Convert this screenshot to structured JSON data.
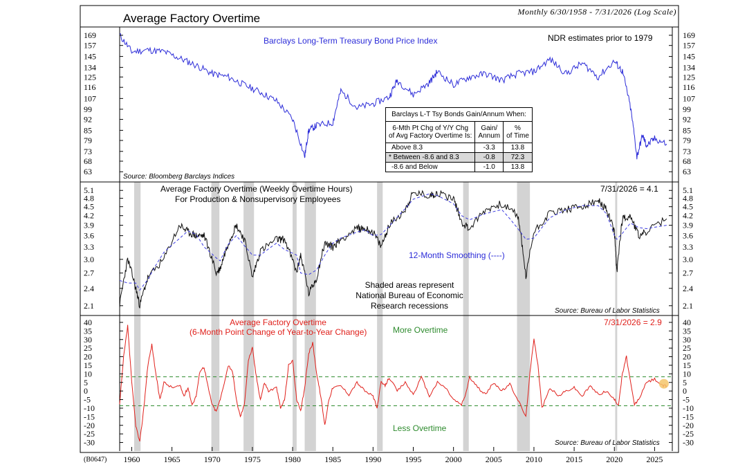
{
  "header": {
    "title": "Average Factory Overtime",
    "subtitle": "Monthly 6/30/1958 - 7/31/2026 (Log Scale)",
    "code": "(B0647)"
  },
  "colors": {
    "bonds": "#2b2bd8",
    "overtime": "#111111",
    "smoothing": "#3a3ae0",
    "change": "#e0201b",
    "threshold": "#2e8b2e",
    "recession": "#d3d3d3",
    "highlight": "#f4c66b"
  },
  "panels": {
    "top": {
      "series_label": "Barclays Long-Term Treasury Bond Price Index",
      "note": "NDR estimates prior to 1979",
      "source": "Source: Bloomberg Barclays Indices"
    },
    "middle": {
      "title_line1": "Average Factory Overtime (Weekly Overtime Hours)",
      "title_line2": "For Production & Nonsupervisory Employees",
      "latest": "7/31/2026 = 4.1",
      "smoothing_label": "12-Month Smoothing (----)",
      "shade_note_1": "Shaded areas represent",
      "shade_note_2": "National Bureau of Economic",
      "shade_note_3": "Research recessions",
      "source": "Source: Bureau of Labor Statistics"
    },
    "bottom": {
      "title_line1": "Average Factory Overtime",
      "title_line2": "(6-Month Point Change of Year-to-Year Change)",
      "latest": "7/31/2026 = 2.9",
      "more": "More Overtime",
      "less": "Less Overtime",
      "source": "Source: Bureau of Labor Statistics"
    }
  },
  "table": {
    "title": "Barclays L-T Tsy Bonds Gain/Annum When:",
    "col1_line1": "6-Mth Pt Chg of Y/Y Chg",
    "col1_line2": "of Avg Factory Overtime Is:",
    "col2_line1": "Gain/",
    "col2_line2": "Annum",
    "col3_line1": "%",
    "col3_line2": "of Time",
    "rows": [
      {
        "label": "Above 8.3",
        "gain": "-3.3",
        "pct": "13.8"
      },
      {
        "label": "*  Between -8.6 and 8.3",
        "gain": "-0.8",
        "pct": "72.3"
      },
      {
        "label": "-8.6 and Below",
        "gain": "-1.0",
        "pct": "13.8"
      }
    ]
  },
  "chart_data": [
    {
      "type": "line",
      "title": "Barclays Long-Term Treasury Bond Price Index",
      "scale": "log",
      "ylim": [
        60,
        175
      ],
      "yticks": [
        "169",
        "157",
        "145",
        "134",
        "125",
        "116",
        "107",
        "99",
        "92",
        "85",
        "79",
        "73",
        "68",
        "63"
      ],
      "x": [
        1958.5,
        1960,
        1962,
        1964,
        1966,
        1968,
        1970,
        1972,
        1974,
        1976,
        1978,
        1980,
        1981.5,
        1982,
        1983,
        1985,
        1986,
        1988,
        1990,
        1992,
        1993,
        1995,
        1997,
        1998,
        2000,
        2002,
        2004,
        2006,
        2008,
        2010,
        2012,
        2014,
        2016,
        2018,
        2020,
        2021,
        2022,
        2022.8,
        2023.5,
        2024,
        2025,
        2026.5
      ],
      "values": [
        169,
        150,
        152,
        150,
        143,
        136,
        128,
        125,
        118,
        112,
        105,
        92,
        70,
        85,
        88,
        90,
        113,
        100,
        103,
        108,
        122,
        110,
        120,
        130,
        118,
        125,
        128,
        122,
        128,
        130,
        142,
        128,
        138,
        125,
        140,
        130,
        100,
        70,
        82,
        76,
        80,
        77
      ]
    },
    {
      "type": "line",
      "title": "Average Factory Overtime (Weekly Overtime Hours)",
      "scale": "log",
      "ylim": [
        2.0,
        5.3
      ],
      "yticks": [
        "5.1",
        "4.8",
        "4.5",
        "4.2",
        "3.9",
        "3.6",
        "3.3",
        "3.0",
        "2.7",
        "2.4",
        "2.1"
      ],
      "x": [
        1958.5,
        1959.5,
        1960.5,
        1961,
        1962,
        1964,
        1966,
        1967,
        1968,
        1969,
        1970.5,
        1971,
        1972,
        1973,
        1974,
        1975,
        1976,
        1978,
        1979,
        1980.5,
        1981,
        1982,
        1983,
        1984,
        1985,
        1986,
        1988,
        1989,
        1990,
        1991,
        1992,
        1994,
        1995,
        1997,
        1998,
        2000,
        2001,
        2002,
        2004,
        2006,
        2008,
        2009,
        2010,
        2012,
        2014,
        2016,
        2018,
        2019,
        2020,
        2020.3,
        2021,
        2022,
        2023,
        2024,
        2026.5
      ],
      "values": [
        2.1,
        3.0,
        2.4,
        2.1,
        2.6,
        3.0,
        3.9,
        3.7,
        3.6,
        3.6,
        2.7,
        2.8,
        3.4,
        3.9,
        3.5,
        2.6,
        3.2,
        3.5,
        3.5,
        2.7,
        3.1,
        2.3,
        2.6,
        3.4,
        3.3,
        3.5,
        3.8,
        3.8,
        3.7,
        3.3,
        3.9,
        4.4,
        5.0,
        4.9,
        5.0,
        4.8,
        4.0,
        3.8,
        4.4,
        4.6,
        4.2,
        2.6,
        3.7,
        4.3,
        4.4,
        4.5,
        4.7,
        4.4,
        3.7,
        2.7,
        4.1,
        4.2,
        3.6,
        3.7,
        4.1
      ]
    },
    {
      "type": "line",
      "title": "Average Factory Overtime (6-Month Point Change of Year-to-Year Change)",
      "ylim": [
        -33,
        42
      ],
      "yticks": [
        "40",
        "35",
        "30",
        "25",
        "20",
        "15",
        "10",
        "5",
        "0",
        "-5",
        "-10",
        "-15",
        "-20",
        "-25",
        "-30"
      ],
      "thresholds": [
        8.3,
        -8.6
      ],
      "x": [
        1958.5,
        1959,
        1959.5,
        1960,
        1960.5,
        1961,
        1961.5,
        1962,
        1962.5,
        1963,
        1963.5,
        1964,
        1965,
        1966,
        1966.5,
        1967,
        1967.5,
        1968,
        1968.5,
        1969,
        1969.5,
        1970,
        1970.5,
        1971,
        1972,
        1972.5,
        1973,
        1973.5,
        1974,
        1974.5,
        1975,
        1975.5,
        1976,
        1976.5,
        1977,
        1978,
        1978.5,
        1979,
        1979.5,
        1980,
        1980.5,
        1981,
        1981.5,
        1982,
        1982.5,
        1983,
        1983.5,
        1984,
        1984.5,
        1985,
        1986,
        1987,
        1988,
        1989,
        1990,
        1990.5,
        1991,
        1991.5,
        1992,
        1993,
        1994,
        1995,
        1996,
        1997,
        1998,
        1999,
        2000,
        2001,
        2001.5,
        2002,
        2003,
        2004,
        2005,
        2006,
        2007,
        2008,
        2009,
        2009.5,
        2010,
        2010.5,
        2011,
        2012,
        2013,
        2014,
        2015,
        2016,
        2017,
        2018,
        2019,
        2020,
        2020.5,
        2021,
        2021.5,
        2022,
        2022.5,
        2023,
        2024,
        2025,
        2026,
        2026.5
      ],
      "values": [
        -8,
        20,
        38,
        5,
        -20,
        -30,
        -10,
        15,
        27,
        10,
        -5,
        5,
        2,
        3,
        -3,
        2,
        -8,
        -3,
        12,
        14,
        2,
        -8,
        -12,
        -5,
        15,
        12,
        -5,
        -15,
        -8,
        18,
        25,
        8,
        -5,
        5,
        0,
        2,
        -10,
        -5,
        15,
        18,
        -5,
        -12,
        2,
        22,
        28,
        10,
        -3,
        -20,
        -5,
        2,
        3,
        -2,
        5,
        0,
        -3,
        -10,
        5,
        3,
        8,
        0,
        5,
        -2,
        8,
        -3,
        5,
        2,
        -5,
        -8,
        -2,
        8,
        2,
        -2,
        5,
        0,
        4,
        -5,
        -15,
        10,
        31,
        15,
        -10,
        2,
        -3,
        0,
        2,
        -3,
        3,
        -2,
        0,
        -5,
        -8,
        10,
        20,
        5,
        -8,
        -5,
        5,
        7,
        3,
        3
      ]
    }
  ],
  "x_axis": {
    "ticks": [
      "1960",
      "1965",
      "1970",
      "1975",
      "1980",
      "1985",
      "1990",
      "1995",
      "2000",
      "2005",
      "2010",
      "2015",
      "2020",
      "2025"
    ],
    "xlim": [
      1958.5,
      2027.2
    ]
  },
  "recessions": [
    [
      1960.3,
      1961.1
    ],
    [
      1969.9,
      1970.9
    ],
    [
      1973.9,
      1975.2
    ],
    [
      1980.0,
      1980.5
    ],
    [
      1981.5,
      1982.9
    ],
    [
      1990.5,
      1991.2
    ],
    [
      2001.2,
      2001.9
    ],
    [
      2007.9,
      2009.5
    ],
    [
      2020.1,
      2020.35
    ]
  ]
}
